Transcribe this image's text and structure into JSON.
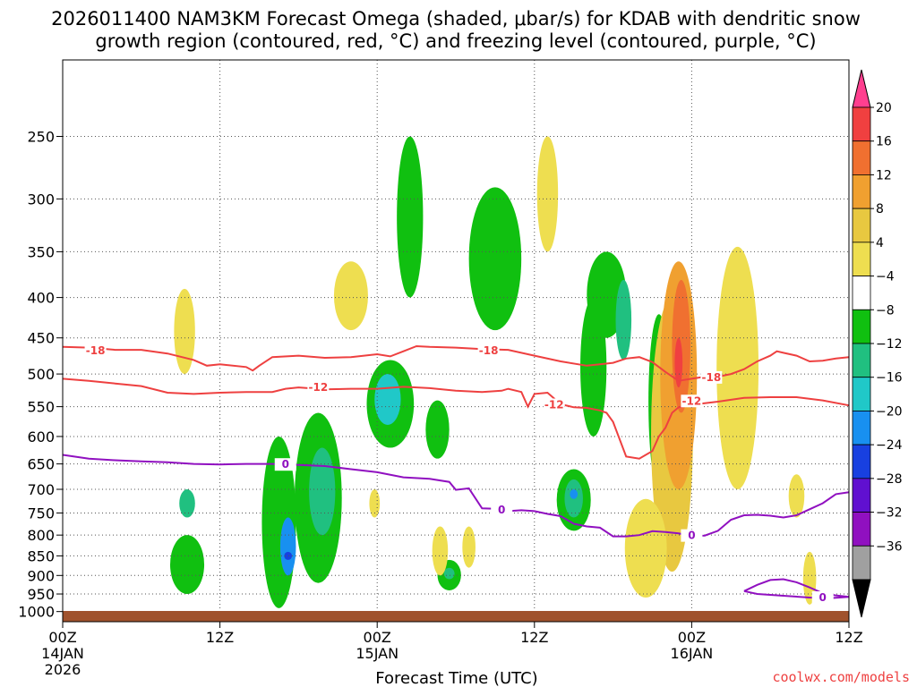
{
  "header": {
    "title_line1": "2026011400 NAM3KM Forecast Omega (shaded, μbar/s) for KDAB with dendritic snow",
    "title_line2": "growth region (contoured, red, °C) and freezing level (contoured, purple, °C)"
  },
  "credit": "coolwx.com/models",
  "colors": {
    "dgz_contour": "#ee4040",
    "freezing_contour": "#9010c0",
    "ground": "#a0522d",
    "grid": "#555555"
  },
  "chart_data": {
    "type": "heatmap",
    "title": "2026011400 NAM3KM Forecast Omega (shaded, μbar/s) for KDAB with dendritic snow growth region (contoured, red, °C) and freezing level (contoured, purple, °C)",
    "xlabel": "Forecast Time (UTC)",
    "ylabel": "",
    "xlim": [
      0,
      60
    ],
    "ylim": [
      1030,
      200
    ],
    "y_scale": "log",
    "grid": "dotted",
    "x_ticks": [
      {
        "hour": 0,
        "label": "00Z",
        "sub1": "14JAN",
        "sub2": "2026"
      },
      {
        "hour": 12,
        "label": "12Z",
        "sub1": "",
        "sub2": ""
      },
      {
        "hour": 24,
        "label": "00Z",
        "sub1": "15JAN",
        "sub2": ""
      },
      {
        "hour": 36,
        "label": "12Z",
        "sub1": "",
        "sub2": ""
      },
      {
        "hour": 48,
        "label": "00Z",
        "sub1": "16JAN",
        "sub2": ""
      },
      {
        "hour": 60,
        "label": "12Z",
        "sub1": "",
        "sub2": ""
      }
    ],
    "y_ticks": [
      "250",
      "300",
      "350",
      "400",
      "450",
      "500",
      "550",
      "600",
      "650",
      "700",
      "750",
      "800",
      "850",
      "900",
      "950",
      "1000"
    ],
    "colorbar": {
      "labels": [
        "20",
        "16",
        "12",
        "8",
        "4",
        "−4",
        "−8",
        "−12",
        "−16",
        "−20",
        "−24",
        "−28",
        "−32",
        "−36"
      ],
      "colors": [
        "#ff3f8f",
        "#f04040",
        "#f07030",
        "#f0a030",
        "#e8c840",
        "#eede50",
        "#ffffff",
        "#10c010",
        "#20c080",
        "#20c8c8",
        "#1890f0",
        "#1840e0",
        "#6010d0",
        "#9010c0",
        "#a0a0a0",
        "#000000"
      ]
    },
    "series": [
      {
        "name": "-18",
        "kind": "dgz",
        "points": [
          [
            0,
            462
          ],
          [
            2,
            463
          ],
          [
            4,
            466
          ],
          [
            6,
            466
          ],
          [
            8,
            471
          ],
          [
            10,
            480
          ],
          [
            11,
            488
          ],
          [
            12,
            486
          ],
          [
            14,
            490
          ],
          [
            14.5,
            495
          ],
          [
            15,
            488
          ],
          [
            16,
            476
          ],
          [
            18,
            474
          ],
          [
            20,
            477
          ],
          [
            22,
            476
          ],
          [
            24,
            472
          ],
          [
            25,
            475
          ],
          [
            26,
            468
          ],
          [
            27,
            461
          ],
          [
            28,
            462
          ],
          [
            30,
            463
          ],
          [
            32,
            465
          ],
          [
            34,
            466
          ],
          [
            36,
            474
          ],
          [
            38,
            482
          ],
          [
            40,
            488
          ],
          [
            41,
            486
          ],
          [
            42,
            484
          ],
          [
            43,
            478
          ],
          [
            44,
            476
          ],
          [
            45,
            483
          ],
          [
            46,
            497
          ],
          [
            47,
            510
          ],
          [
            48,
            507
          ],
          [
            49,
            504
          ],
          [
            50,
            504
          ],
          [
            51,
            500
          ],
          [
            52,
            493
          ],
          [
            53,
            482
          ],
          [
            54,
            474
          ],
          [
            54.5,
            468
          ],
          [
            55,
            470
          ],
          [
            56,
            474
          ],
          [
            57,
            482
          ],
          [
            58,
            481
          ],
          [
            59,
            478
          ],
          [
            60,
            476
          ]
        ],
        "labels": [
          {
            "x": 2.5,
            "p": 467
          },
          {
            "x": 32.5,
            "p": 467
          },
          {
            "x": 49.5,
            "p": 505
          }
        ]
      },
      {
        "name": "-12",
        "kind": "dgz",
        "points": [
          [
            0,
            507
          ],
          [
            2,
            510
          ],
          [
            4,
            514
          ],
          [
            6,
            518
          ],
          [
            8,
            528
          ],
          [
            10,
            530
          ],
          [
            12,
            528
          ],
          [
            14,
            527
          ],
          [
            16,
            527
          ],
          [
            17,
            522
          ],
          [
            18,
            520
          ],
          [
            20,
            523
          ],
          [
            22,
            522
          ],
          [
            24,
            522
          ],
          [
            26,
            519
          ],
          [
            28,
            521
          ],
          [
            30,
            525
          ],
          [
            32,
            527
          ],
          [
            33.5,
            525
          ],
          [
            34,
            522
          ],
          [
            35,
            527
          ],
          [
            35.5,
            550
          ],
          [
            36,
            530
          ],
          [
            37,
            528
          ],
          [
            38,
            546
          ],
          [
            39,
            551
          ],
          [
            40,
            552
          ],
          [
            41,
            556
          ],
          [
            41.5,
            560
          ],
          [
            42,
            575
          ],
          [
            43,
            636
          ],
          [
            44,
            640
          ],
          [
            45,
            626
          ],
          [
            45.5,
            600
          ],
          [
            46,
            585
          ],
          [
            46.5,
            560
          ],
          [
            47,
            551
          ],
          [
            48,
            547
          ],
          [
            50,
            542
          ],
          [
            52,
            536
          ],
          [
            54,
            535
          ],
          [
            56,
            535
          ],
          [
            58,
            540
          ],
          [
            60,
            548
          ]
        ],
        "labels": [
          {
            "x": 19.5,
            "p": 520
          },
          {
            "x": 37.5,
            "p": 547
          },
          {
            "x": 48,
            "p": 541
          }
        ]
      },
      {
        "name": "0",
        "kind": "freezing",
        "points": [
          [
            0,
            633
          ],
          [
            2,
            640
          ],
          [
            4,
            643
          ],
          [
            6,
            645
          ],
          [
            8,
            647
          ],
          [
            10,
            650
          ],
          [
            12,
            651
          ],
          [
            14,
            650
          ],
          [
            16,
            650
          ],
          [
            18,
            652
          ],
          [
            20,
            654
          ],
          [
            22,
            660
          ],
          [
            24,
            666
          ],
          [
            26,
            676
          ],
          [
            28,
            679
          ],
          [
            29.5,
            685
          ],
          [
            30,
            701
          ],
          [
            31,
            698
          ],
          [
            32,
            740
          ],
          [
            33,
            741
          ],
          [
            34,
            746
          ],
          [
            35,
            744
          ],
          [
            36,
            746
          ],
          [
            37,
            752
          ],
          [
            38,
            757
          ],
          [
            39,
            774
          ],
          [
            40,
            780
          ],
          [
            41,
            783
          ],
          [
            42,
            803
          ],
          [
            43,
            803
          ],
          [
            44,
            800
          ],
          [
            45,
            791
          ],
          [
            46,
            793
          ],
          [
            47,
            796
          ],
          [
            48,
            802
          ],
          [
            49,
            801
          ],
          [
            50,
            790
          ],
          [
            51,
            765
          ],
          [
            52,
            755
          ],
          [
            53,
            754
          ],
          [
            54,
            756
          ],
          [
            55,
            760
          ],
          [
            56,
            755
          ],
          [
            57,
            742
          ],
          [
            58,
            729
          ],
          [
            59,
            710
          ],
          [
            60,
            706
          ]
        ],
        "labels": [
          {
            "x": 17,
            "p": 651
          },
          {
            "x": 33.5,
            "p": 743
          },
          {
            "x": 48,
            "p": 801
          }
        ]
      },
      {
        "name": "0",
        "kind": "freezing",
        "points": [
          [
            52,
            942
          ],
          [
            53,
            925
          ],
          [
            54,
            912
          ],
          [
            55,
            910
          ],
          [
            56,
            918
          ],
          [
            57,
            932
          ],
          [
            58,
            948
          ],
          [
            59,
            954
          ],
          [
            60,
            958
          ],
          [
            58.5,
            962
          ],
          [
            57,
            960
          ],
          [
            55,
            955
          ],
          [
            53,
            950
          ],
          [
            52,
            942
          ]
        ],
        "labels": [
          {
            "x": 58,
            "p": 960
          }
        ]
      }
    ]
  }
}
